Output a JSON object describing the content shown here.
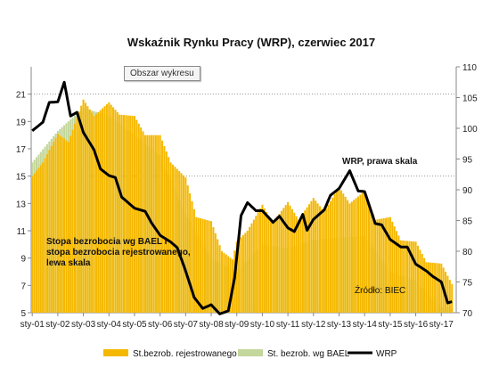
{
  "chart_data": {
    "type": "bar",
    "title": "Wskaźnik Rynku Pracy (WRP), czerwiec 2017",
    "categories": [
      "sty-01",
      "sty-02",
      "sty-03",
      "sty-04",
      "sty-05",
      "sty-06",
      "sty-07",
      "sty-08",
      "sty-09",
      "sty-10",
      "sty-11",
      "sty-12",
      "sty-13",
      "sty-14",
      "sty-15",
      "sty-16",
      "sty-17"
    ],
    "ylim_left": [
      5,
      23
    ],
    "yticks_left": [
      "5",
      "7",
      "9",
      "11",
      "13",
      "15",
      "17",
      "19",
      "21"
    ],
    "ylim_right": [
      70,
      110
    ],
    "yticks_right": [
      "70",
      "75",
      "80",
      "85",
      "90",
      "95",
      "100",
      "105",
      "110"
    ],
    "start": "2001-01",
    "series": [
      {
        "name": "St.bezrob. rejestrowanego",
        "axis": "left",
        "color": "#f5b800",
        "anchors": [
          [
            "2001-01",
            15.0
          ],
          [
            "2001-06",
            16.0
          ],
          [
            "2002-01",
            18.1
          ],
          [
            "2002-06",
            17.5
          ],
          [
            "2003-01",
            20.6
          ],
          [
            "2003-06",
            19.4
          ],
          [
            "2004-01",
            20.4
          ],
          [
            "2004-06",
            19.5
          ],
          [
            "2005-01",
            19.4
          ],
          [
            "2005-06",
            18.0
          ],
          [
            "2006-01",
            18.0
          ],
          [
            "2006-06",
            16.0
          ],
          [
            "2007-01",
            14.9
          ],
          [
            "2007-06",
            12.0
          ],
          [
            "2008-01",
            11.7
          ],
          [
            "2008-06",
            9.5
          ],
          [
            "2008-11",
            8.9
          ],
          [
            "2009-01",
            10.2
          ],
          [
            "2009-06",
            11.0
          ],
          [
            "2010-01",
            12.9
          ],
          [
            "2010-06",
            11.6
          ],
          [
            "2011-01",
            13.1
          ],
          [
            "2011-06",
            11.8
          ],
          [
            "2012-01",
            13.4
          ],
          [
            "2012-06",
            12.4
          ],
          [
            "2013-01",
            14.2
          ],
          [
            "2013-06",
            13.0
          ],
          [
            "2014-01",
            13.9
          ],
          [
            "2014-06",
            11.8
          ],
          [
            "2015-01",
            12.0
          ],
          [
            "2015-06",
            10.3
          ],
          [
            "2016-01",
            10.2
          ],
          [
            "2016-06",
            8.7
          ],
          [
            "2017-01",
            8.6
          ],
          [
            "2017-06",
            7.1
          ]
        ]
      },
      {
        "name": "St. bezrob. wg BAEL",
        "axis": "left",
        "color": "#c3d69b",
        "anchors": [
          [
            "2001-01",
            16.0
          ],
          [
            "2002-01",
            18.3
          ],
          [
            "2003-01",
            20.0
          ],
          [
            "2004-01",
            19.4
          ],
          [
            "2005-01",
            18.0
          ],
          [
            "2006-01",
            16.5
          ],
          [
            "2007-01",
            12.2
          ],
          [
            "2008-01",
            9.0
          ],
          [
            "2009-01",
            8.0
          ],
          [
            "2010-01",
            10.0
          ],
          [
            "2011-01",
            9.7
          ],
          [
            "2012-01",
            10.3
          ],
          [
            "2013-01",
            10.5
          ],
          [
            "2014-01",
            10.6
          ],
          [
            "2015-01",
            8.0
          ],
          [
            "2016-01",
            7.3
          ],
          [
            "2017-01",
            5.4
          ]
        ]
      },
      {
        "name": "WRP",
        "axis": "right",
        "color": "#000000",
        "anchors": [
          [
            "2001-01",
            99.6
          ],
          [
            "2001-06",
            101.0
          ],
          [
            "2001-09",
            104.2
          ],
          [
            "2002-01",
            104.3
          ],
          [
            "2002-04",
            107.5
          ],
          [
            "2002-07",
            102.0
          ],
          [
            "2002-10",
            102.6
          ],
          [
            "2003-01",
            99.3
          ],
          [
            "2003-06",
            96.5
          ],
          [
            "2003-09",
            93.4
          ],
          [
            "2004-01",
            92.3
          ],
          [
            "2004-04",
            92.0
          ],
          [
            "2004-07",
            88.8
          ],
          [
            "2005-01",
            87.0
          ],
          [
            "2005-06",
            86.5
          ],
          [
            "2005-09",
            84.6
          ],
          [
            "2006-01",
            82.6
          ],
          [
            "2006-06",
            81.5
          ],
          [
            "2006-09",
            80.6
          ],
          [
            "2007-01",
            76.8
          ],
          [
            "2007-05",
            72.5
          ],
          [
            "2007-09",
            70.7
          ],
          [
            "2008-01",
            71.3
          ],
          [
            "2008-05",
            69.8
          ],
          [
            "2008-09",
            70.3
          ],
          [
            "2008-12",
            75.7
          ],
          [
            "2009-03",
            85.8
          ],
          [
            "2009-06",
            87.9
          ],
          [
            "2009-10",
            86.6
          ],
          [
            "2010-01",
            86.6
          ],
          [
            "2010-06",
            84.7
          ],
          [
            "2010-09",
            85.7
          ],
          [
            "2011-01",
            83.8
          ],
          [
            "2011-04",
            83.2
          ],
          [
            "2011-08",
            86.0
          ],
          [
            "2011-10",
            83.4
          ],
          [
            "2012-01",
            85.2
          ],
          [
            "2012-06",
            86.7
          ],
          [
            "2012-09",
            89.1
          ],
          [
            "2013-01",
            90.2
          ],
          [
            "2013-06",
            93.1
          ],
          [
            "2013-10",
            89.8
          ],
          [
            "2014-01",
            89.7
          ],
          [
            "2014-06",
            84.5
          ],
          [
            "2014-09",
            84.3
          ],
          [
            "2015-01",
            81.9
          ],
          [
            "2015-06",
            80.7
          ],
          [
            "2015-09",
            80.7
          ],
          [
            "2016-01",
            77.9
          ],
          [
            "2016-06",
            76.8
          ],
          [
            "2016-09",
            75.9
          ],
          [
            "2017-01",
            75.0
          ],
          [
            "2017-04",
            71.6
          ],
          [
            "2017-06",
            71.8
          ]
        ]
      }
    ],
    "annotations": {
      "wrp_label": "WRP, prawa skala",
      "unemployment_label_lines": [
        "Stopa bezrobocia wg BAEL i",
        "stopa bezrobocia rejestrowanego,",
        "lewa skala"
      ],
      "source": "Źródło: BIEC"
    },
    "reference_lines": {
      "left_axis_values": [
        21,
        15
      ]
    },
    "legend_position": "bottom",
    "grid": false
  },
  "ui": {
    "tooltip": "Obszar wykresu"
  }
}
